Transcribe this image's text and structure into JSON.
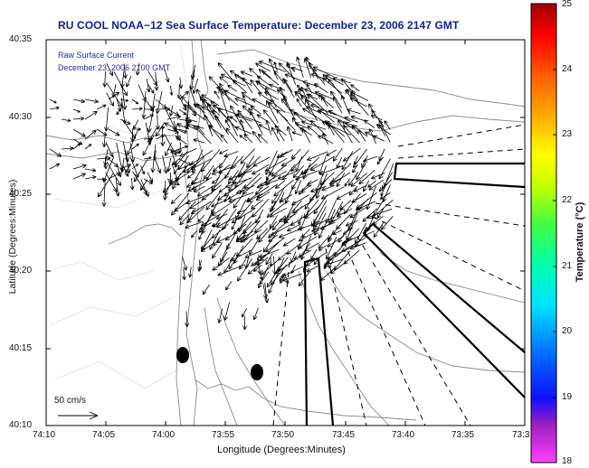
{
  "title": "RU COOL  NOAA−12  Sea Surface Temperature:  December 23, 2006 2147 GMT",
  "inset": {
    "line1": "Raw Surface Current",
    "line2": "December 23, 2006 2100 GMT"
  },
  "axes": {
    "xlabel": "Longitude (Degrees:Minutes)",
    "ylabel": "Latitude (Degrees:Minutes)",
    "xticks": [
      "74:10",
      "74:05",
      "74:00",
      "73:55",
      "73:50",
      "73:45",
      "73:40",
      "73:35",
      "73:3"
    ],
    "yticks": [
      "40:35",
      "40:30",
      "40:25",
      "40:20",
      "40:15",
      "40:10"
    ]
  },
  "colorbar": {
    "label": "Temperature (°C)",
    "ticks": [
      "25",
      "24",
      "23",
      "22",
      "21",
      "20",
      "19",
      "18"
    ],
    "min": 18,
    "max": 25,
    "colormap": [
      "#ff40ff",
      "#a020c0",
      "#1010ff",
      "#0070ff",
      "#00e0ff",
      "#00ffb0",
      "#40ff40",
      "#c0ff00",
      "#ffff00",
      "#ffb000",
      "#ff6000",
      "#ff0000",
      "#a00000"
    ]
  },
  "scale_arrow": {
    "label": "50 cm/s"
  },
  "colors": {
    "title": "#10209a",
    "inset_text": "#1a2bb0",
    "frame": "#000000",
    "contour": "#808080",
    "arrow": "#000000"
  }
}
